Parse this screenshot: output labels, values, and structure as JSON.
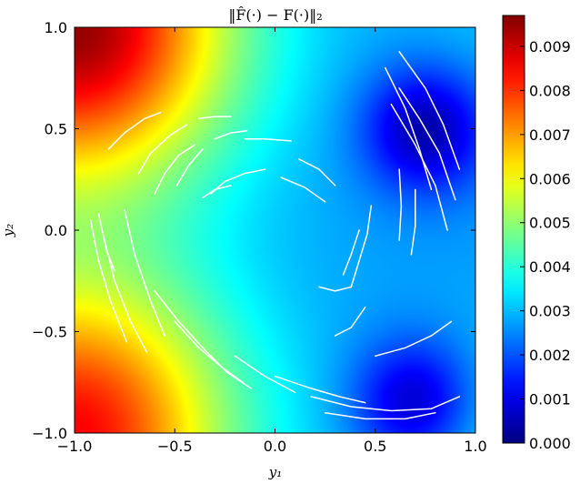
{
  "chart_data": {
    "type": "heatmap",
    "title": "‖F̂(·) − F(·)‖₂",
    "xlabel": "y₁",
    "ylabel": "y₂",
    "xlim": [
      -1.0,
      1.0
    ],
    "ylim": [
      -1.0,
      1.0
    ],
    "xticks": [
      "−1.0",
      "−0.5",
      "0.0",
      "0.5",
      "1.0"
    ],
    "xtick_values": [
      -1.0,
      -0.5,
      0.0,
      0.5,
      1.0
    ],
    "yticks": [
      "−1.0",
      "−0.5",
      "0.0",
      "0.5",
      "1.0"
    ],
    "ytick_values": [
      -1.0,
      -0.5,
      0.0,
      0.5,
      1.0
    ],
    "colormap": "jet",
    "colorbar": {
      "range": [
        0.0,
        0.0097
      ],
      "tick_values": [
        0.0,
        0.001,
        0.002,
        0.003,
        0.004,
        0.005,
        0.006,
        0.007,
        0.008,
        0.009
      ],
      "tick_labels": [
        "0.000",
        "0.001",
        "0.002",
        "0.003",
        "0.004",
        "0.005",
        "0.006",
        "0.007",
        "0.008",
        "0.009"
      ]
    },
    "field_features": [
      {
        "kind": "peak",
        "location": "top-left corner",
        "x": -1.0,
        "y": 1.0,
        "value": 0.0095
      },
      {
        "kind": "peak",
        "location": "bottom-left corner",
        "x": -1.0,
        "y": -1.0,
        "value": 0.0085
      },
      {
        "kind": "moderate",
        "location": "bottom-right corner",
        "x": 1.0,
        "y": -1.0,
        "value": 0.0035
      },
      {
        "kind": "moderate",
        "location": "top-right corner",
        "x": 1.0,
        "y": 1.0,
        "value": 0.003
      },
      {
        "kind": "minimum",
        "location": "upper right",
        "x": 0.75,
        "y": 0.5,
        "value": 0.0003
      },
      {
        "kind": "minimum",
        "location": "lower right",
        "x": 0.7,
        "y": -0.85,
        "value": 0.0003
      },
      {
        "kind": "background",
        "location": "center",
        "x": 0.0,
        "y": -0.2,
        "value": 0.0027
      }
    ],
    "streamlines": [
      [
        [
          -0.83,
          0.4
        ],
        [
          -0.75,
          0.48
        ],
        [
          -0.65,
          0.55
        ],
        [
          -0.57,
          0.58
        ]
      ],
      [
        [
          -0.68,
          0.28
        ],
        [
          -0.62,
          0.38
        ],
        [
          -0.52,
          0.47
        ],
        [
          -0.44,
          0.52
        ]
      ],
      [
        [
          -0.6,
          0.18
        ],
        [
          -0.55,
          0.28
        ],
        [
          -0.48,
          0.37
        ],
        [
          -0.4,
          0.42
        ]
      ],
      [
        [
          -0.49,
          0.22
        ],
        [
          -0.43,
          0.32
        ],
        [
          -0.36,
          0.4
        ]
      ],
      [
        [
          -0.38,
          0.55
        ],
        [
          -0.3,
          0.56
        ],
        [
          -0.22,
          0.56
        ]
      ],
      [
        [
          -0.3,
          0.45
        ],
        [
          -0.22,
          0.48
        ],
        [
          -0.14,
          0.49
        ]
      ],
      [
        [
          -0.32,
          0.18
        ],
        [
          -0.25,
          0.24
        ],
        [
          -0.15,
          0.28
        ],
        [
          -0.05,
          0.3
        ]
      ],
      [
        [
          -0.15,
          0.45
        ],
        [
          -0.05,
          0.45
        ],
        [
          0.08,
          0.44
        ]
      ],
      [
        [
          0.03,
          0.26
        ],
        [
          0.15,
          0.21
        ],
        [
          0.25,
          0.14
        ]
      ],
      [
        [
          0.12,
          0.35
        ],
        [
          0.22,
          0.3
        ],
        [
          0.3,
          0.22
        ]
      ],
      [
        [
          -0.36,
          0.16
        ],
        [
          -0.3,
          0.2
        ],
        [
          -0.22,
          0.22
        ]
      ],
      [
        [
          -0.92,
          0.05
        ],
        [
          -0.88,
          -0.15
        ],
        [
          -0.82,
          -0.35
        ],
        [
          -0.74,
          -0.55
        ]
      ],
      [
        [
          -0.85,
          -0.05
        ],
        [
          -0.8,
          -0.25
        ],
        [
          -0.72,
          -0.45
        ],
        [
          -0.64,
          -0.6
        ]
      ],
      [
        [
          -0.75,
          0.1
        ],
        [
          -0.7,
          -0.12
        ],
        [
          -0.62,
          -0.35
        ],
        [
          -0.55,
          -0.52
        ]
      ],
      [
        [
          -0.88,
          0.08
        ],
        [
          -0.84,
          -0.1
        ],
        [
          -0.8,
          -0.2
        ]
      ],
      [
        [
          -0.6,
          -0.3
        ],
        [
          -0.48,
          -0.45
        ],
        [
          -0.36,
          -0.58
        ],
        [
          -0.24,
          -0.7
        ],
        [
          -0.12,
          -0.78
        ]
      ],
      [
        [
          -0.5,
          -0.45
        ],
        [
          -0.38,
          -0.58
        ],
        [
          -0.26,
          -0.68
        ],
        [
          -0.16,
          -0.75
        ]
      ],
      [
        [
          -0.2,
          -0.62
        ],
        [
          -0.05,
          -0.72
        ],
        [
          0.1,
          -0.8
        ]
      ],
      [
        [
          0.0,
          -0.72
        ],
        [
          0.18,
          -0.78
        ],
        [
          0.32,
          -0.82
        ],
        [
          0.45,
          -0.85
        ]
      ],
      [
        [
          0.18,
          -0.82
        ],
        [
          0.38,
          -0.87
        ],
        [
          0.58,
          -0.89
        ],
        [
          0.78,
          -0.88
        ],
        [
          0.92,
          -0.82
        ]
      ],
      [
        [
          0.25,
          -0.9
        ],
        [
          0.45,
          -0.93
        ],
        [
          0.65,
          -0.93
        ],
        [
          0.8,
          -0.9
        ]
      ],
      [
        [
          0.5,
          -0.62
        ],
        [
          0.65,
          -0.58
        ],
        [
          0.78,
          -0.52
        ],
        [
          0.88,
          -0.45
        ]
      ],
      [
        [
          0.62,
          0.7
        ],
        [
          0.72,
          0.55
        ],
        [
          0.82,
          0.38
        ],
        [
          0.9,
          0.15
        ]
      ],
      [
        [
          0.58,
          0.62
        ],
        [
          0.7,
          0.42
        ],
        [
          0.8,
          0.22
        ],
        [
          0.86,
          0.0
        ]
      ],
      [
        [
          0.55,
          0.8
        ],
        [
          0.65,
          0.6
        ],
        [
          0.72,
          0.4
        ],
        [
          0.78,
          0.2
        ]
      ],
      [
        [
          0.62,
          0.88
        ],
        [
          0.75,
          0.7
        ],
        [
          0.84,
          0.52
        ],
        [
          0.92,
          0.3
        ]
      ],
      [
        [
          0.48,
          0.12
        ],
        [
          0.46,
          -0.02
        ],
        [
          0.42,
          -0.15
        ],
        [
          0.38,
          -0.28
        ]
      ],
      [
        [
          0.42,
          0.0
        ],
        [
          0.38,
          -0.12
        ],
        [
          0.34,
          -0.22
        ]
      ],
      [
        [
          0.62,
          0.3
        ],
        [
          0.63,
          0.12
        ],
        [
          0.62,
          -0.05
        ]
      ],
      [
        [
          0.7,
          0.2
        ],
        [
          0.7,
          0.02
        ],
        [
          0.68,
          -0.12
        ]
      ],
      [
        [
          0.45,
          -0.38
        ],
        [
          0.38,
          -0.48
        ],
        [
          0.3,
          -0.52
        ]
      ],
      [
        [
          0.22,
          -0.28
        ],
        [
          0.3,
          -0.3
        ],
        [
          0.38,
          -0.28
        ]
      ]
    ]
  }
}
